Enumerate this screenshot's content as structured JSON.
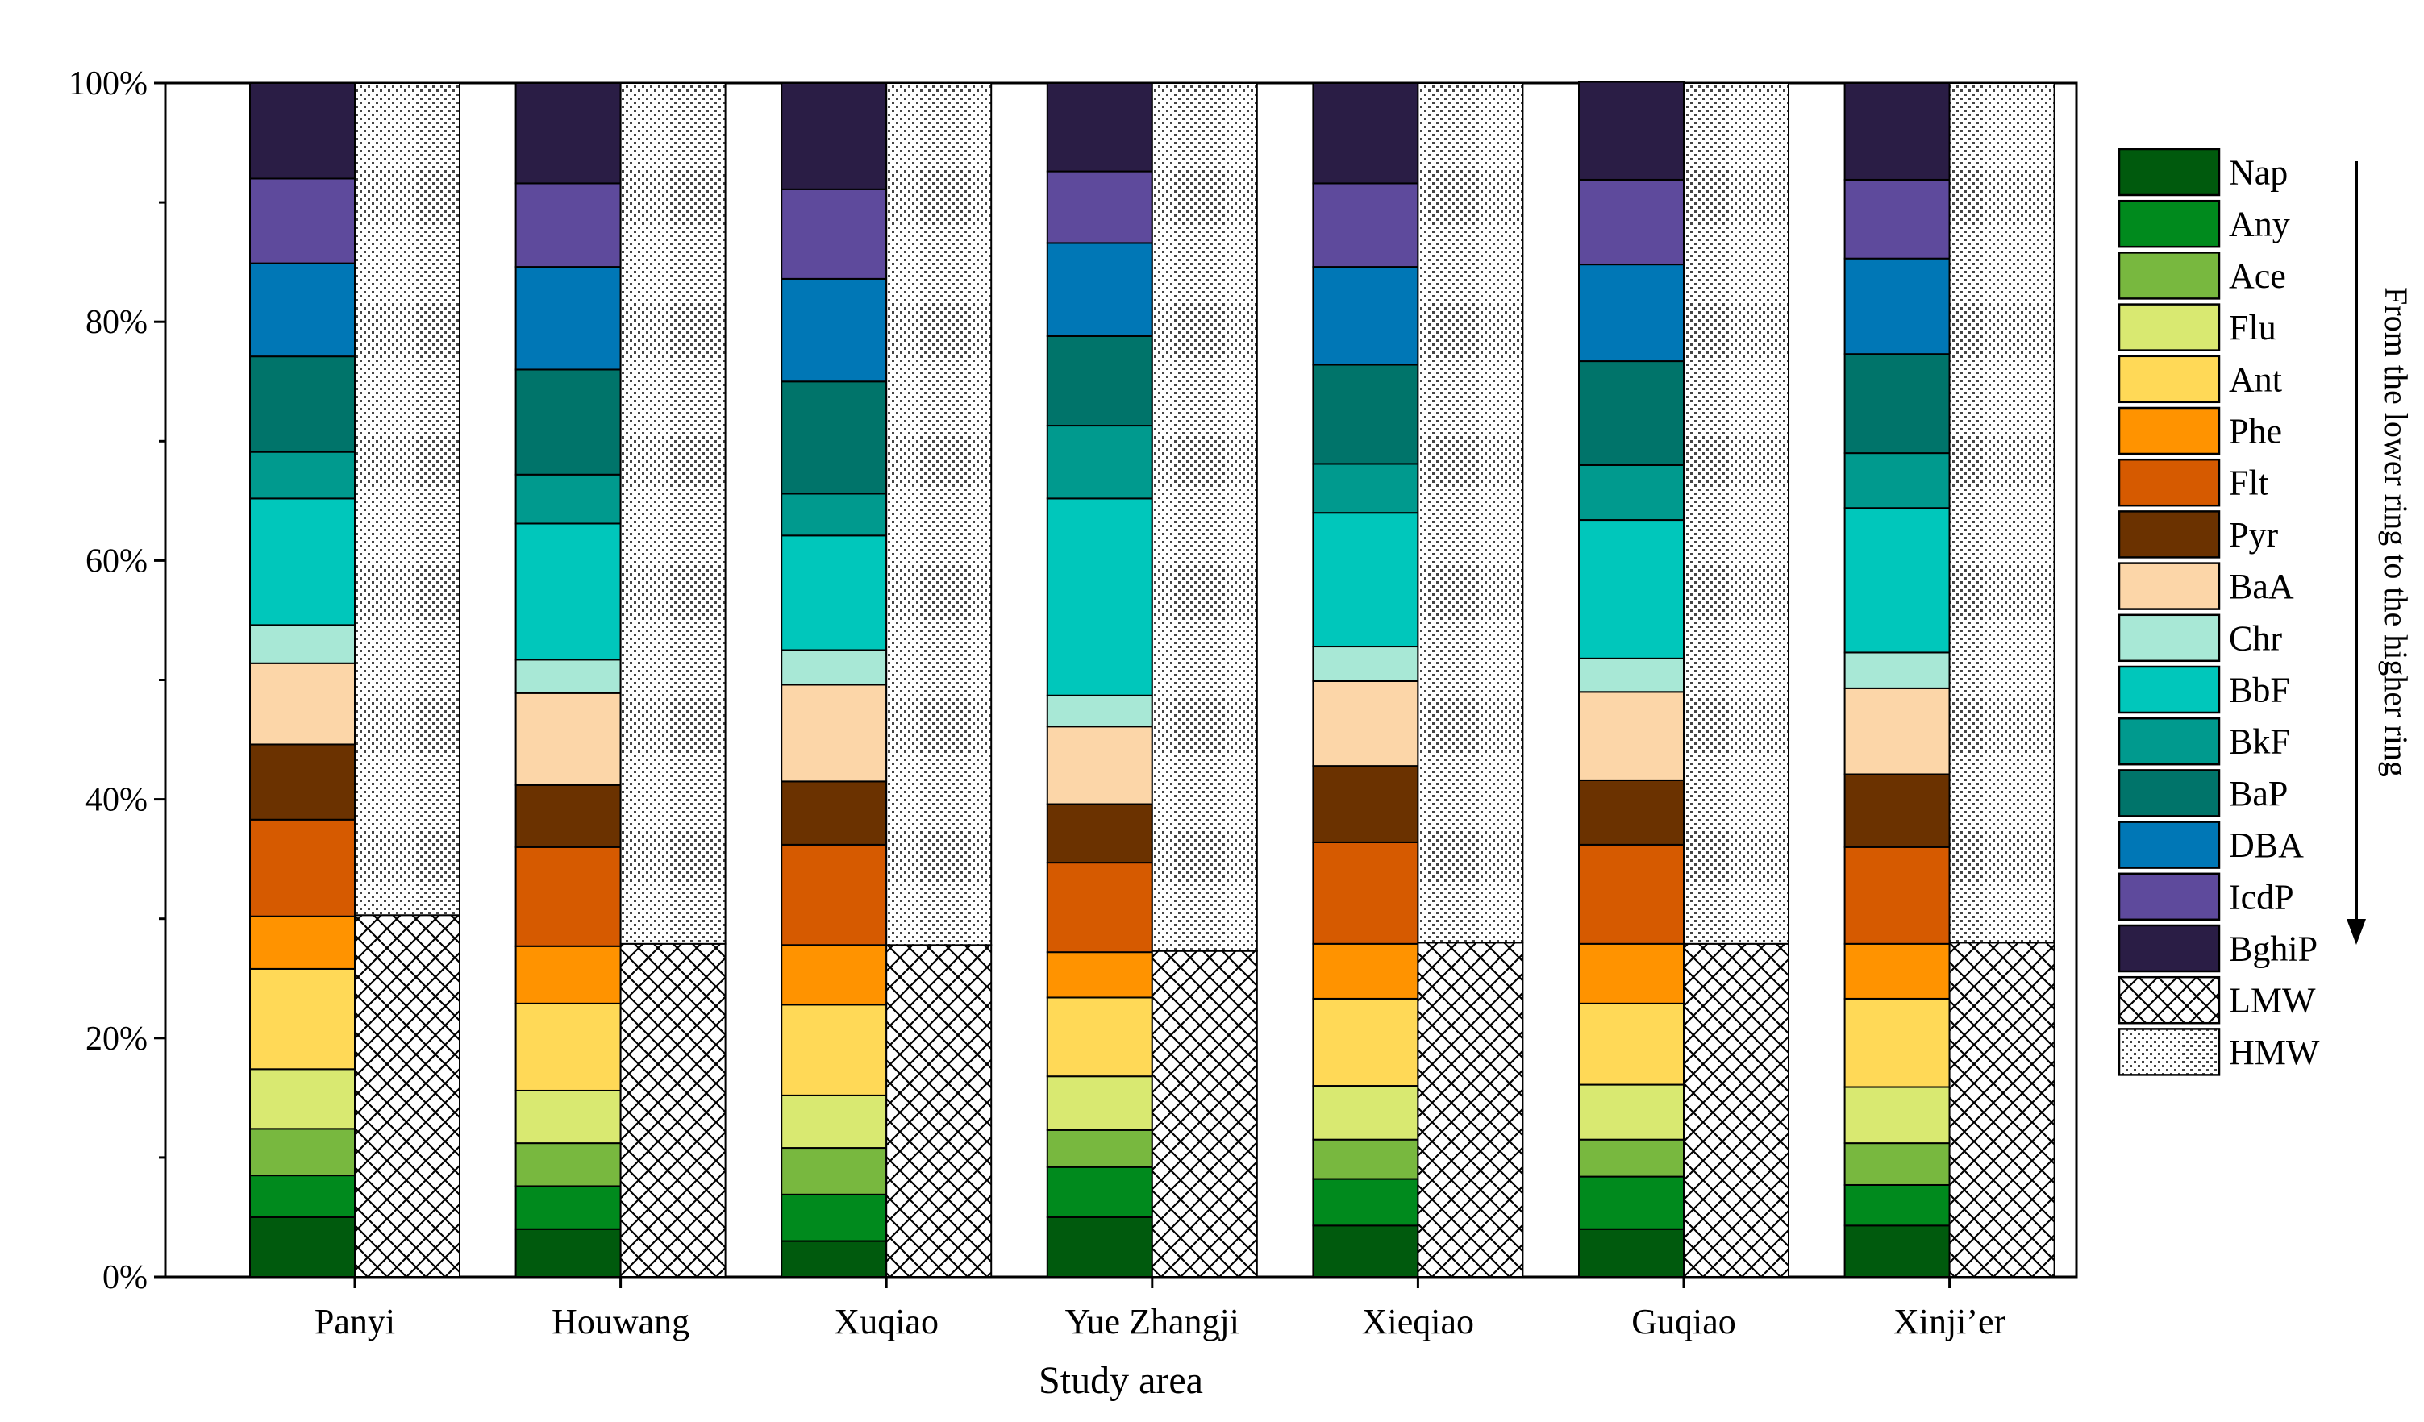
{
  "chart_data": {
    "type": "bar",
    "stacked": true,
    "percent": true,
    "title": "",
    "xlabel": "Study area",
    "ylabel": "",
    "ylim": [
      0,
      100
    ],
    "yticks": [
      "0%",
      "20%",
      "40%",
      "60%",
      "80%",
      "100%"
    ],
    "categories": [
      "Panyi",
      "Houwang",
      "Xuqiao",
      "Yue Zhangji",
      "Xieqiao",
      "Guqiao",
      "Xinji’er"
    ],
    "series": [
      {
        "name": "Nap",
        "color": "#005a0d",
        "values": [
          5.0,
          4.0,
          3.0,
          5.0,
          4.3,
          4.0,
          4.3
        ]
      },
      {
        "name": "Any",
        "color": "#008a1d",
        "values": [
          3.5,
          3.6,
          3.9,
          4.2,
          3.9,
          4.4,
          3.4
        ]
      },
      {
        "name": "Ace",
        "color": "#78b83f",
        "values": [
          3.9,
          3.6,
          3.9,
          3.1,
          3.3,
          3.1,
          3.5
        ]
      },
      {
        "name": "Flu",
        "color": "#d9e971",
        "values": [
          5.0,
          4.4,
          4.4,
          4.5,
          4.5,
          4.6,
          4.7
        ]
      },
      {
        "name": "Ant",
        "color": "#ffd957",
        "values": [
          8.4,
          7.3,
          7.6,
          6.6,
          7.3,
          6.8,
          7.4
        ]
      },
      {
        "name": "Phe",
        "color": "#ff9300",
        "values": [
          4.4,
          4.8,
          5.0,
          3.8,
          4.6,
          5.0,
          4.6
        ]
      },
      {
        "name": "Flt",
        "color": "#d65a00",
        "values": [
          8.1,
          8.3,
          8.4,
          7.5,
          8.5,
          8.3,
          8.1
        ]
      },
      {
        "name": "Pyr",
        "color": "#6b3200",
        "values": [
          6.3,
          5.2,
          5.3,
          4.9,
          6.4,
          5.4,
          6.1
        ]
      },
      {
        "name": "BaA",
        "color": "#fcd6a8",
        "values": [
          6.8,
          7.7,
          8.1,
          6.5,
          7.1,
          7.4,
          7.2
        ]
      },
      {
        "name": "Chr",
        "color": "#a8e8d6",
        "values": [
          3.2,
          2.8,
          2.9,
          2.6,
          2.9,
          2.8,
          3.0
        ]
      },
      {
        "name": "BbF",
        "color": "#00c7bb",
        "values": [
          10.6,
          11.4,
          9.6,
          16.5,
          11.2,
          11.6,
          12.1
        ]
      },
      {
        "name": "BkF",
        "color": "#009a8e",
        "values": [
          3.9,
          4.1,
          3.5,
          6.1,
          4.1,
          4.6,
          4.6
        ]
      },
      {
        "name": "BaP",
        "color": "#00746a",
        "values": [
          8.0,
          8.8,
          9.4,
          7.5,
          8.3,
          8.7,
          8.3
        ]
      },
      {
        "name": "DBA",
        "color": "#0077b6",
        "values": [
          7.8,
          8.6,
          8.6,
          7.8,
          8.2,
          8.1,
          8.0
        ]
      },
      {
        "name": "IcdP",
        "color": "#5e4a9c",
        "values": [
          7.1,
          7.0,
          7.5,
          6.0,
          7.0,
          7.1,
          6.6
        ]
      },
      {
        "name": "BghiP",
        "color": "#2a1d45",
        "values": [
          8.0,
          8.4,
          8.9,
          7.4,
          8.4,
          8.2,
          8.1
        ]
      }
    ],
    "comparison_series": [
      {
        "name": "LMW",
        "pattern": "crosshatch",
        "values": [
          30.3,
          27.9,
          27.8,
          27.3,
          28.0,
          27.9,
          28.0
        ]
      },
      {
        "name": "HMW",
        "pattern": "dots",
        "values": [
          69.7,
          72.1,
          72.2,
          72.7,
          72.0,
          72.1,
          72.0
        ]
      }
    ],
    "legend": {
      "position": "right",
      "entries": [
        "Nap",
        "Any",
        "Ace",
        "Flu",
        "Ant",
        "Phe",
        "Flt",
        "Pyr",
        "BaA",
        "Chr",
        "BbF",
        "BkF",
        "BaP",
        "DBA",
        "IcdP",
        "BghiP",
        "LMW",
        "HMW"
      ]
    },
    "annotation": "From the lower ring to the higher ring"
  }
}
